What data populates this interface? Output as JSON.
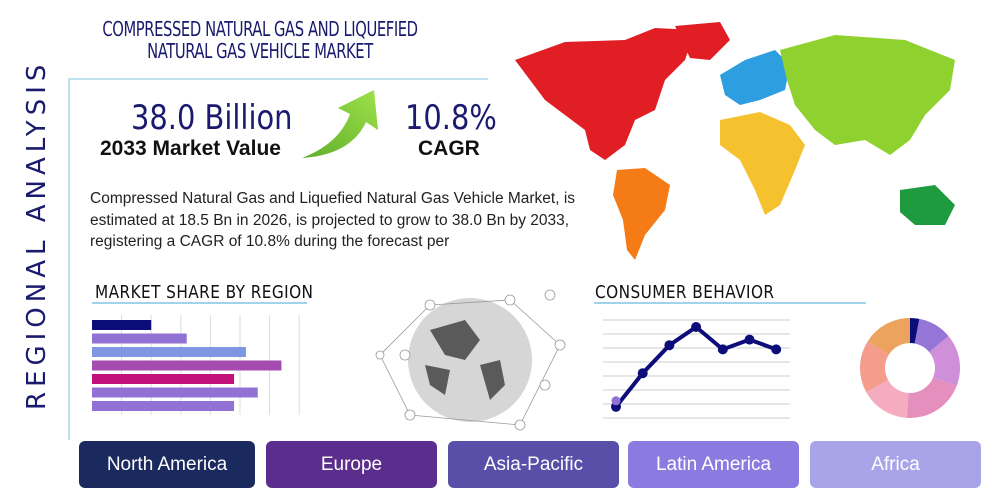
{
  "title": "COMPRESSED NATURAL GAS AND LIQUEFIED NATURAL GAS VEHICLE MARKET",
  "side_label": "REGIONAL ANALYSIS",
  "market_value": {
    "value": "38.0 Billion",
    "label": "2033 Market Value"
  },
  "cagr": {
    "value": "10.8%",
    "label": "CAGR"
  },
  "description": "Compressed Natural Gas and Liquefied Natural Gas Vehicle Market, is estimated at 18.5 Bn in 2026, is projected to grow to 38.0 Bn by 2033, registering a CAGR of 10.8% during the forecast per",
  "sections": {
    "market_share": "MARKET SHARE BY REGION",
    "consumer": "CONSUMER BEHAVIOR"
  },
  "regions": [
    {
      "label": "North America",
      "color": "#1b2a5e"
    },
    {
      "label": "Europe",
      "color": "#5b2d8c"
    },
    {
      "label": "Asia-Pacific",
      "color": "#5a4fa8"
    },
    {
      "label": "Latin America",
      "color": "#8b7be0"
    },
    {
      "label": "Africa",
      "color": "#a9a4e8"
    }
  ],
  "chart_data": [
    {
      "type": "bar",
      "orientation": "horizontal",
      "values": [
        2,
        3.2,
        5.2,
        6.4,
        4.8,
        5.6,
        4.8
      ],
      "colors": [
        "#0d0d7a",
        "#9171d4",
        "#7f97e0",
        "#a64bb0",
        "#c0117a",
        "#9171d4",
        "#9171d4"
      ],
      "xlim": [
        0,
        7
      ],
      "grid": true
    },
    {
      "type": "line",
      "values": [
        0.8,
        3.2,
        5.2,
        6.5,
        4.9,
        5.6,
        4.9
      ],
      "ylim": [
        0,
        7
      ],
      "grid": true,
      "color": "#0d0d7a"
    },
    {
      "type": "pie",
      "donut": true,
      "values": [
        3,
        11,
        17,
        20,
        16,
        17,
        16
      ],
      "colors": [
        "#0d0d7a",
        "#9575d6",
        "#cf8fd9",
        "#e48fbd",
        "#f6acc0",
        "#f59d8c",
        "#eba35e"
      ]
    }
  ]
}
